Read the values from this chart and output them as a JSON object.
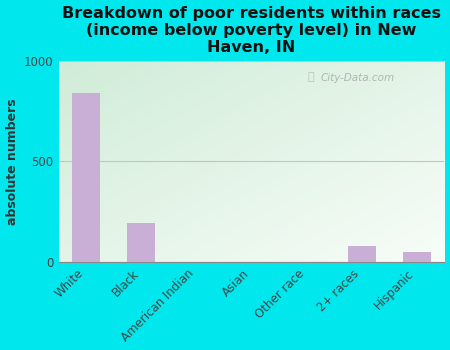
{
  "title": "Breakdown of poor residents within races\n(income below poverty level) in New\nHaven, IN",
  "categories": [
    "White",
    "Black",
    "American Indian",
    "Asian",
    "Other race",
    "2+ races",
    "Hispanic"
  ],
  "values": [
    840,
    195,
    0,
    0,
    0,
    80,
    50
  ],
  "bar_color": "#c9aed6",
  "ylabel": "absolute numbers",
  "ylim": [
    0,
    1000
  ],
  "yticks": [
    0,
    500,
    1000
  ],
  "background_outer": "#00e8ee",
  "grad_top_left": "#d4edda",
  "grad_bottom_right": "#f5fbf5",
  "grid_color": "#b8ccb8",
  "title_fontsize": 11.5,
  "axis_label_fontsize": 9,
  "tick_fontsize": 8.5,
  "watermark": "City-Data.com"
}
